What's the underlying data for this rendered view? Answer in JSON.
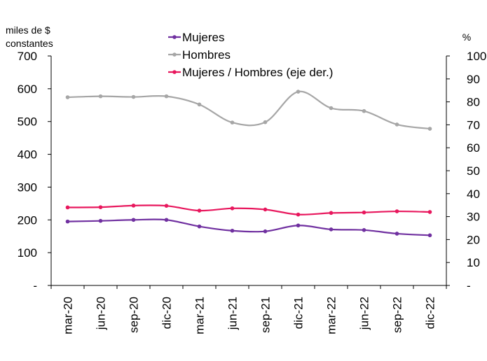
{
  "chart_data": {
    "type": "line",
    "left_axis_unit_line1": "miles de $",
    "left_axis_unit_line2": "constantes",
    "right_axis_unit": "%",
    "categories": [
      "mar-20",
      "jun-20",
      "sep-20",
      "dic-20",
      "mar-21",
      "jun-21",
      "sep-21",
      "dic-21",
      "mar-22",
      "jun-22",
      "sep-22",
      "dic-22"
    ],
    "left_ticks": [
      "-",
      "100",
      "200",
      "300",
      "400",
      "500",
      "600",
      "700"
    ],
    "right_ticks": [
      "-",
      "10",
      "20",
      "30",
      "40",
      "50",
      "60",
      "70",
      "80",
      "90",
      "100"
    ],
    "ylim_left": [
      0,
      700
    ],
    "ylim_right": [
      0,
      100
    ],
    "legend_placement": "top-center",
    "grid": false,
    "series": [
      {
        "name": "Mujeres",
        "axis": "left",
        "color": "#7030a0",
        "values": [
          195,
          197,
          200,
          200,
          180,
          167,
          165,
          183,
          171,
          169,
          158,
          153
        ]
      },
      {
        "name": "Hombres",
        "axis": "left",
        "color": "#a6a6a6",
        "values": [
          574,
          577,
          575,
          577,
          552,
          497,
          498,
          591,
          541,
          532,
          491,
          478
        ]
      },
      {
        "name": "Mujeres / Hombres (eje der.)",
        "axis": "right",
        "color": "#e8175d",
        "values": [
          34.0,
          34.1,
          34.8,
          34.7,
          32.6,
          33.6,
          33.1,
          30.9,
          31.6,
          31.8,
          32.3,
          32.0
        ]
      }
    ]
  }
}
